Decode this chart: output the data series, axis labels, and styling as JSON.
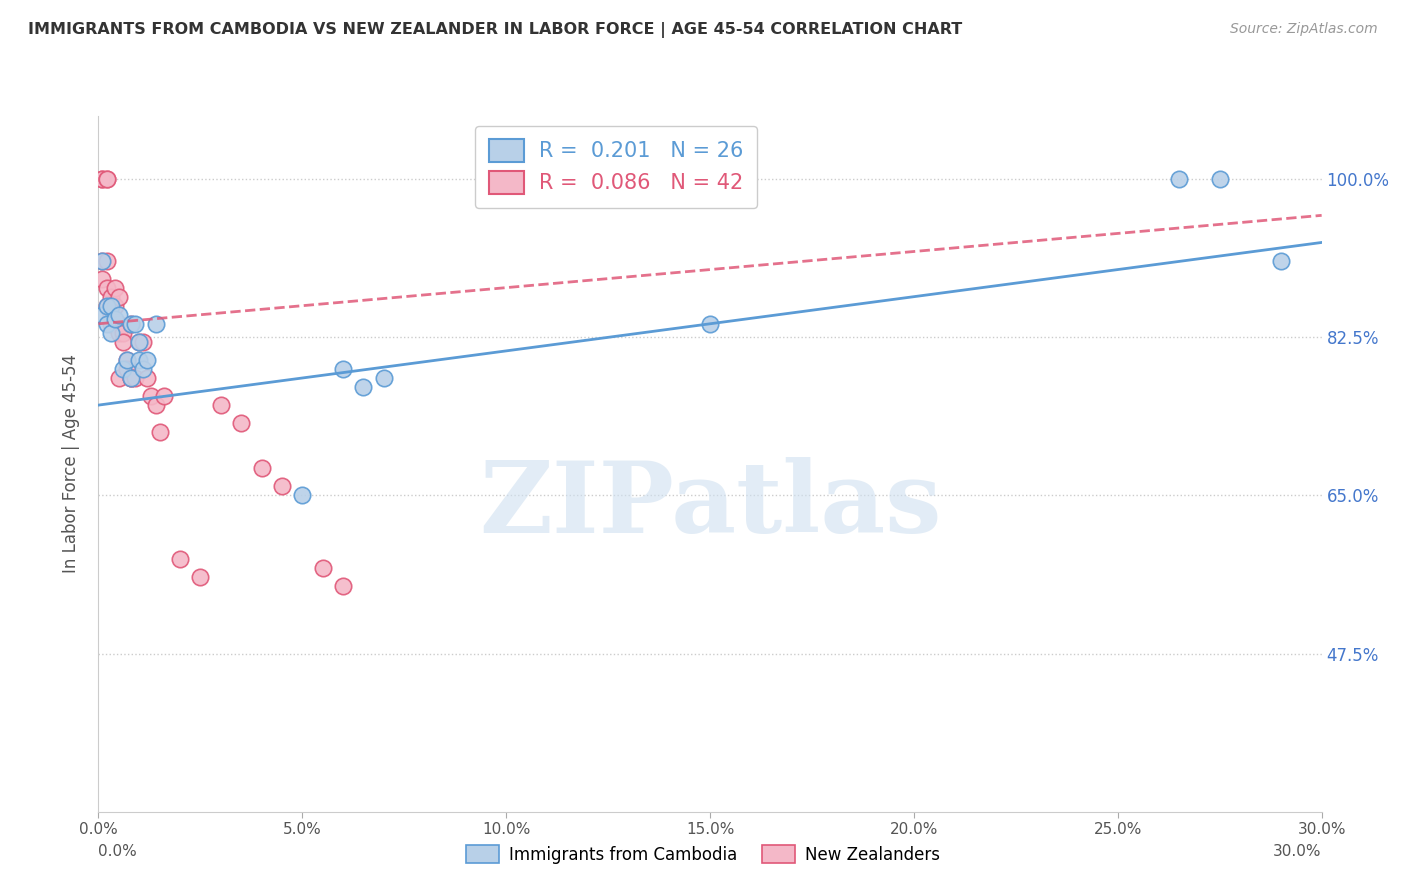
{
  "title": "IMMIGRANTS FROM CAMBODIA VS NEW ZEALANDER IN LABOR FORCE | AGE 45-54 CORRELATION CHART",
  "source": "Source: ZipAtlas.com",
  "ylabel": "In Labor Force | Age 45-54",
  "xmin": 0.0,
  "xmax": 0.3,
  "ymin": 30.0,
  "ymax": 107.0,
  "blue_R": 0.201,
  "blue_N": 26,
  "pink_R": 0.086,
  "pink_N": 42,
  "blue_color": "#b8d0e8",
  "blue_edge_color": "#5b9bd5",
  "pink_color": "#f4b8c8",
  "pink_edge_color": "#e05878",
  "blue_x": [
    0.001,
    0.001,
    0.002,
    0.002,
    0.003,
    0.003,
    0.004,
    0.005,
    0.006,
    0.007,
    0.008,
    0.008,
    0.009,
    0.01,
    0.01,
    0.011,
    0.012,
    0.014,
    0.05,
    0.06,
    0.065,
    0.07,
    0.15,
    0.265,
    0.275,
    0.29
  ],
  "blue_y": [
    91.0,
    85.0,
    86.0,
    84.0,
    86.0,
    83.0,
    84.5,
    85.0,
    79.0,
    80.0,
    84.0,
    78.0,
    84.0,
    80.0,
    82.0,
    79.0,
    80.0,
    84.0,
    65.0,
    79.0,
    77.0,
    78.0,
    84.0,
    100.0,
    100.0,
    91.0
  ],
  "pink_x": [
    0.001,
    0.001,
    0.001,
    0.001,
    0.002,
    0.002,
    0.002,
    0.002,
    0.002,
    0.003,
    0.003,
    0.003,
    0.003,
    0.004,
    0.004,
    0.005,
    0.005,
    0.005,
    0.005,
    0.006,
    0.006,
    0.007,
    0.007,
    0.008,
    0.008,
    0.008,
    0.009,
    0.01,
    0.011,
    0.012,
    0.013,
    0.014,
    0.015,
    0.016,
    0.02,
    0.025,
    0.03,
    0.035,
    0.04,
    0.045,
    0.055,
    0.06
  ],
  "pink_y": [
    100.0,
    100.0,
    91.0,
    89.0,
    100.0,
    100.0,
    91.0,
    88.0,
    86.0,
    87.0,
    86.0,
    85.0,
    84.0,
    88.0,
    86.0,
    87.0,
    84.0,
    83.0,
    78.0,
    83.0,
    82.0,
    80.0,
    79.0,
    84.0,
    78.0,
    78.0,
    78.0,
    82.0,
    82.0,
    78.0,
    76.0,
    75.0,
    72.0,
    76.0,
    58.0,
    56.0,
    75.0,
    73.0,
    68.0,
    66.0,
    57.0,
    55.0
  ],
  "blue_trendline_x": [
    0.0,
    0.3
  ],
  "blue_trendline_y": [
    75.0,
    93.0
  ],
  "pink_trendline_x": [
    0.0,
    0.3
  ],
  "pink_trendline_y": [
    84.0,
    96.0
  ],
  "ytick_vals": [
    47.5,
    65.0,
    82.5,
    100.0
  ],
  "ytick_labels": [
    "47.5%",
    "65.0%",
    "82.5%",
    "100.0%"
  ],
  "xtick_positions": [
    0.0,
    0.05,
    0.1,
    0.15,
    0.2,
    0.25,
    0.3
  ],
  "xtick_labels": [
    "0.0%",
    "5.0%",
    "10.0%",
    "15.0%",
    "20.0%",
    "25.0%",
    "30.0%"
  ],
  "legend_blue_label": "R =  0.201   N = 26",
  "legend_pink_label": "R =  0.086   N = 42",
  "bottom_legend_blue": "Immigrants from Cambodia",
  "bottom_legend_pink": "New Zealanders",
  "watermark_text": "ZIPatlas",
  "watermark_color": "#cfe0f0",
  "grid_color": "#cccccc",
  "bg_color": "#ffffff",
  "title_color": "#333333"
}
